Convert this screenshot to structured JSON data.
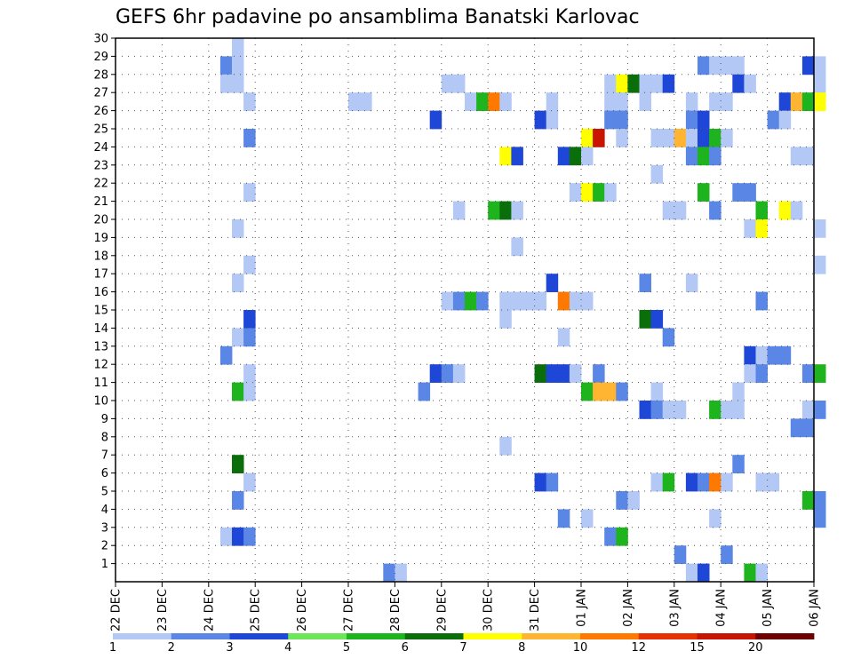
{
  "chart_data": {
    "type": "heatmap",
    "title": "GEFS 6hr padavine po ansamblima Banatski Karlovac",
    "xlabel": "",
    "ylabel": "",
    "x_ticks": [
      "22 DEC",
      "23 DEC",
      "24 DEC",
      "25 DEC",
      "26 DEC",
      "27 DEC",
      "28 DEC",
      "29 DEC",
      "30 DEC",
      "31 DEC",
      "01 JAN",
      "02 JAN",
      "03 JAN",
      "04 JAN",
      "05 JAN",
      "06 JAN"
    ],
    "y_ticks": [
      "1",
      "2",
      "3",
      "4",
      "5",
      "6",
      "7",
      "8",
      "9",
      "10",
      "11",
      "12",
      "13",
      "14",
      "15",
      "16",
      "17",
      "18",
      "19",
      "20",
      "21",
      "22",
      "23",
      "24",
      "25",
      "26",
      "27",
      "28",
      "29",
      "30"
    ],
    "x_range": [
      "22 DEC 00",
      "06 JAN 00"
    ],
    "y_range": [
      0,
      30
    ],
    "grid": "dotted",
    "colorbar": {
      "labels": [
        "1",
        "2",
        "3",
        "4",
        "5",
        "6",
        "7",
        "8",
        "10",
        "12",
        "15",
        "20"
      ],
      "colors": [
        "#b4c8f5",
        "#5a87e6",
        "#1e46d7",
        "#6ee65a",
        "#1eb41e",
        "#0a6e0a",
        "#ffff00",
        "#ffb432",
        "#ff7800",
        "#e63200",
        "#c81400",
        "#6e0000"
      ]
    },
    "cells": [
      [
        2.5,
        30,
        1
      ],
      [
        2.25,
        29,
        2
      ],
      [
        2.5,
        29,
        1
      ],
      [
        12.5,
        29,
        2
      ],
      [
        12.75,
        29,
        1
      ],
      [
        13,
        29,
        1
      ],
      [
        13.25,
        29,
        1
      ],
      [
        14.75,
        29,
        3
      ],
      [
        15,
        29,
        1
      ],
      [
        2.25,
        28,
        1
      ],
      [
        2.5,
        28,
        1
      ],
      [
        7,
        28,
        1
      ],
      [
        7.25,
        28,
        1
      ],
      [
        10.5,
        28,
        1
      ],
      [
        10.75,
        28,
        7
      ],
      [
        11,
        28,
        6
      ],
      [
        11.25,
        28,
        1
      ],
      [
        11.5,
        28,
        1
      ],
      [
        11.75,
        28,
        3
      ],
      [
        13.25,
        28,
        3
      ],
      [
        13.5,
        28,
        1
      ],
      [
        15,
        28,
        1
      ],
      [
        2.75,
        27,
        1
      ],
      [
        5,
        27,
        1
      ],
      [
        5.25,
        27,
        1
      ],
      [
        7.5,
        27,
        1
      ],
      [
        7.75,
        27,
        5
      ],
      [
        8,
        27,
        9
      ],
      [
        8.25,
        27,
        1
      ],
      [
        9.25,
        27,
        1
      ],
      [
        10.5,
        27,
        1
      ],
      [
        10.75,
        27,
        1
      ],
      [
        11.25,
        27,
        1
      ],
      [
        12.25,
        27,
        1
      ],
      [
        12.75,
        27,
        1
      ],
      [
        13,
        27,
        1
      ],
      [
        14.25,
        27,
        3
      ],
      [
        14.5,
        27,
        8
      ],
      [
        14.75,
        27,
        5
      ],
      [
        15,
        27,
        7
      ],
      [
        6.75,
        26,
        3
      ],
      [
        9,
        26,
        3
      ],
      [
        9.25,
        26,
        1
      ],
      [
        10.5,
        26,
        2
      ],
      [
        10.75,
        26,
        2
      ],
      [
        12.25,
        26,
        2
      ],
      [
        12.5,
        26,
        3
      ],
      [
        14,
        26,
        2
      ],
      [
        14.25,
        26,
        1
      ],
      [
        2.75,
        25,
        2
      ],
      [
        10,
        25,
        7
      ],
      [
        10.25,
        25,
        11
      ],
      [
        10.75,
        25,
        1
      ],
      [
        11.5,
        25,
        1
      ],
      [
        11.75,
        25,
        1
      ],
      [
        12,
        25,
        8
      ],
      [
        12.25,
        25,
        1
      ],
      [
        12.5,
        25,
        3
      ],
      [
        12.75,
        25,
        5
      ],
      [
        13,
        25,
        1
      ],
      [
        8.25,
        24,
        7
      ],
      [
        8.5,
        24,
        3
      ],
      [
        9.5,
        24,
        3
      ],
      [
        9.75,
        24,
        6
      ],
      [
        10,
        24,
        1
      ],
      [
        12.25,
        24,
        2
      ],
      [
        12.5,
        24,
        5
      ],
      [
        12.75,
        24,
        2
      ],
      [
        14.5,
        24,
        1
      ],
      [
        14.75,
        24,
        1
      ],
      [
        11.5,
        23,
        1
      ],
      [
        2.75,
        22,
        1
      ],
      [
        9.75,
        22,
        1
      ],
      [
        10,
        22,
        7
      ],
      [
        10.25,
        22,
        5
      ],
      [
        10.5,
        22,
        1
      ],
      [
        12.5,
        22,
        5
      ],
      [
        13.25,
        22,
        2
      ],
      [
        13.5,
        22,
        2
      ],
      [
        7.25,
        21,
        1
      ],
      [
        8,
        21,
        5
      ],
      [
        8.25,
        21,
        6
      ],
      [
        8.5,
        21,
        1
      ],
      [
        11.75,
        21,
        1
      ],
      [
        12,
        21,
        1
      ],
      [
        12.75,
        21,
        2
      ],
      [
        13.75,
        21,
        5
      ],
      [
        14.25,
        21,
        7
      ],
      [
        14.5,
        21,
        1
      ],
      [
        2.5,
        20,
        1
      ],
      [
        13.5,
        20,
        1
      ],
      [
        13.75,
        20,
        7
      ],
      [
        15,
        20,
        1
      ],
      [
        8.5,
        19,
        1
      ],
      [
        2.75,
        18,
        1
      ],
      [
        15,
        18,
        1
      ],
      [
        2.5,
        17,
        1
      ],
      [
        9.25,
        17,
        3
      ],
      [
        11.25,
        17,
        2
      ],
      [
        12.25,
        17,
        1
      ],
      [
        7,
        16,
        1
      ],
      [
        7.25,
        16,
        2
      ],
      [
        7.5,
        16,
        5
      ],
      [
        7.75,
        16,
        2
      ],
      [
        8.25,
        16,
        1
      ],
      [
        8.5,
        16,
        1
      ],
      [
        8.75,
        16,
        1
      ],
      [
        9,
        16,
        1
      ],
      [
        9.5,
        16,
        9
      ],
      [
        9.75,
        16,
        1
      ],
      [
        10,
        16,
        1
      ],
      [
        13.75,
        16,
        2
      ],
      [
        2.75,
        15,
        3
      ],
      [
        8.25,
        15,
        1
      ],
      [
        11.25,
        15,
        6
      ],
      [
        11.5,
        15,
        3
      ],
      [
        2.5,
        14,
        1
      ],
      [
        2.75,
        14,
        2
      ],
      [
        9.5,
        14,
        1
      ],
      [
        11.75,
        14,
        2
      ],
      [
        2.25,
        13,
        2
      ],
      [
        13.5,
        13,
        3
      ],
      [
        13.75,
        13,
        1
      ],
      [
        14,
        13,
        2
      ],
      [
        14.25,
        13,
        2
      ],
      [
        2.75,
        12,
        1
      ],
      [
        6.75,
        12,
        3
      ],
      [
        7,
        12,
        2
      ],
      [
        7.25,
        12,
        1
      ],
      [
        9,
        12,
        6
      ],
      [
        9.25,
        12,
        3
      ],
      [
        9.5,
        12,
        3
      ],
      [
        9.75,
        12,
        1
      ],
      [
        10.25,
        12,
        2
      ],
      [
        13.5,
        12,
        1
      ],
      [
        13.75,
        12,
        2
      ],
      [
        14.75,
        12,
        2
      ],
      [
        15,
        12,
        5
      ],
      [
        2.5,
        11,
        5
      ],
      [
        2.75,
        11,
        1
      ],
      [
        6.5,
        11,
        2
      ],
      [
        10,
        11,
        5
      ],
      [
        10.25,
        11,
        8
      ],
      [
        10.5,
        11,
        8
      ],
      [
        10.75,
        11,
        2
      ],
      [
        11.5,
        11,
        1
      ],
      [
        13.25,
        11,
        1
      ],
      [
        11.25,
        10,
        3
      ],
      [
        11.5,
        10,
        2
      ],
      [
        11.75,
        10,
        1
      ],
      [
        12,
        10,
        1
      ],
      [
        12.75,
        10,
        5
      ],
      [
        13,
        10,
        1
      ],
      [
        13.25,
        10,
        1
      ],
      [
        14.75,
        10,
        1
      ],
      [
        15,
        10,
        2
      ],
      [
        14.5,
        9,
        2
      ],
      [
        14.75,
        9,
        2
      ],
      [
        8.25,
        8,
        1
      ],
      [
        2.5,
        7,
        6
      ],
      [
        13.25,
        7,
        2
      ],
      [
        2.75,
        6,
        1
      ],
      [
        9,
        6,
        3
      ],
      [
        9.25,
        6,
        2
      ],
      [
        11.5,
        6,
        1
      ],
      [
        11.75,
        6,
        5
      ],
      [
        12.25,
        6,
        3
      ],
      [
        12.5,
        6,
        2
      ],
      [
        12.75,
        6,
        9
      ],
      [
        13,
        6,
        1
      ],
      [
        13.75,
        6,
        1
      ],
      [
        14,
        6,
        1
      ],
      [
        2.5,
        5,
        2
      ],
      [
        10.75,
        5,
        2
      ],
      [
        11,
        5,
        1
      ],
      [
        14.75,
        5,
        5
      ],
      [
        15,
        5,
        2
      ],
      [
        9.5,
        4,
        2
      ],
      [
        10,
        4,
        1
      ],
      [
        12.75,
        4,
        1
      ],
      [
        15,
        4,
        2
      ],
      [
        2.25,
        3,
        1
      ],
      [
        2.5,
        3,
        3
      ],
      [
        2.75,
        3,
        2
      ],
      [
        10.5,
        3,
        2
      ],
      [
        10.75,
        3,
        5
      ],
      [
        12,
        2,
        2
      ],
      [
        13,
        2,
        2
      ],
      [
        5.75,
        1,
        2
      ],
      [
        6,
        1,
        1
      ],
      [
        12.25,
        1,
        1
      ],
      [
        12.5,
        1,
        3
      ],
      [
        13.5,
        1,
        5
      ],
      [
        13.75,
        1,
        1
      ]
    ]
  }
}
